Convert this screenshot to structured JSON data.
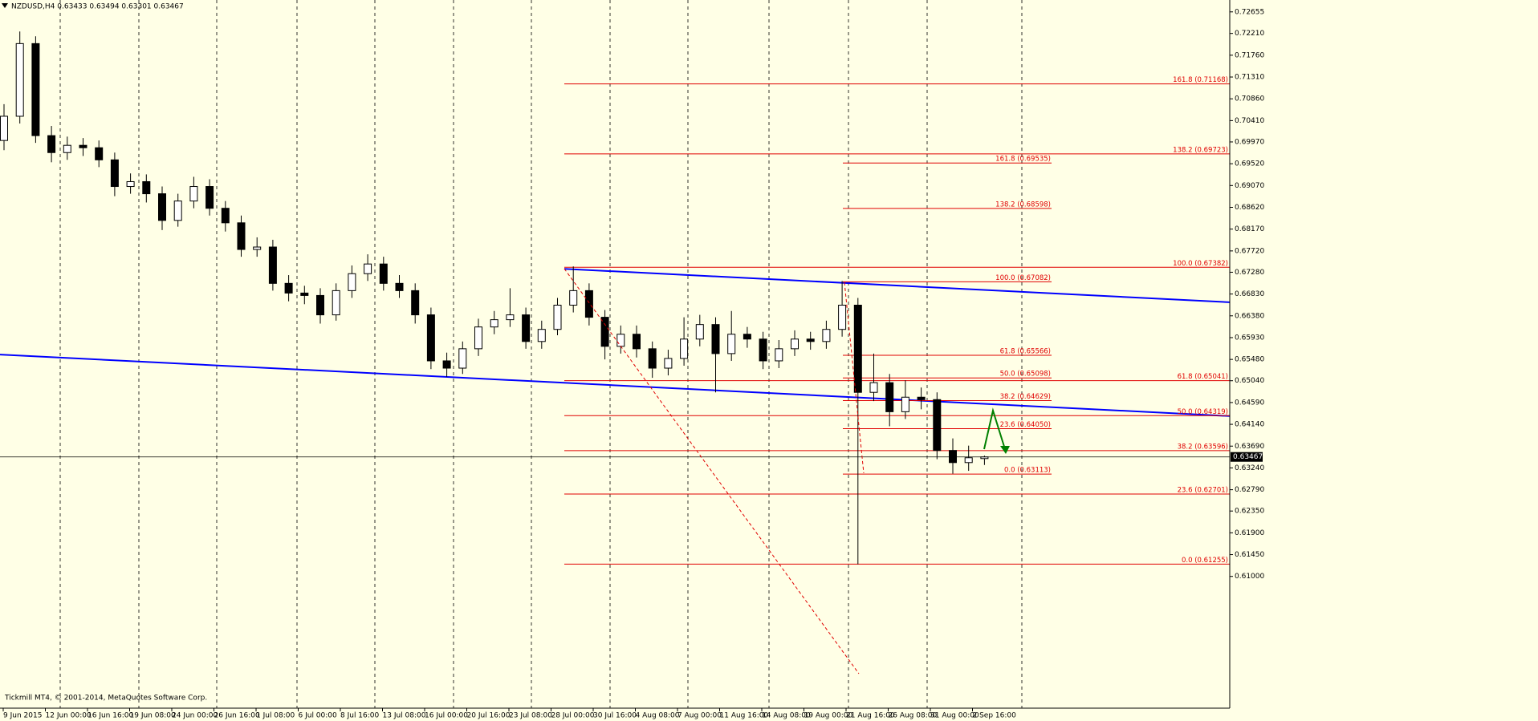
{
  "chart_data": {
    "type": "candlestick",
    "header": "NZDUSD,H4  0.63433 0.63494 0.63301 0.63467",
    "footer": "Tickmill MT4, © 2001-2014, MetaQuotes Software Corp.",
    "background": "#ffffe6",
    "up_color": "#ffffff",
    "down_color": "#000000",
    "ylim": [
      0.5828,
      0.729
    ],
    "yticks": [
      0.72655,
      {
        "value": 0.7221,
        "label": "0.72210"
      },
      {
        "value": 0.7176,
        "label": "0.71760"
      },
      {
        "value": 0.7131,
        "label": "0.71310"
      },
      {
        "value": 0.7086,
        "label": "0.70860"
      },
      {
        "value": 0.7041,
        "label": "0.70410"
      },
      {
        "value": 0.6997,
        "label": "0.69970"
      },
      {
        "value": 0.6952,
        "label": "0.69520"
      },
      {
        "value": 0.6907,
        "label": "0.69070"
      },
      {
        "value": 0.6862,
        "label": "0.68620"
      },
      {
        "value": 0.6817,
        "label": "0.68170"
      },
      {
        "value": 0.6772,
        "label": "0.67720"
      },
      {
        "value": 0.6728,
        "label": "0.67280"
      },
      {
        "value": 0.6683,
        "label": "0.66830"
      },
      {
        "value": 0.6638,
        "label": "0.66380"
      },
      {
        "value": 0.6593,
        "label": "0.65930"
      },
      {
        "value": 0.6548,
        "label": "0.65480"
      },
      {
        "value": 0.6504,
        "label": "0.65040"
      },
      {
        "value": 0.6459,
        "label": "0.64590"
      },
      {
        "value": 0.6414,
        "label": "0.64140"
      },
      {
        "value": 0.6369,
        "label": "0.63690"
      },
      {
        "value": 0.6324,
        "label": "0.63240"
      },
      {
        "value": 0.6279,
        "label": "0.62790"
      },
      {
        "value": 0.6235,
        "label": "0.62350"
      },
      {
        "value": 0.619,
        "label": "0.61900"
      },
      {
        "value": 0.6145,
        "label": "0.61450"
      },
      {
        "value": 0.61,
        "label": "0.61000"
      }
    ],
    "x_tick_labels": [
      "9 Jun 2015",
      "12 Jun 00:00",
      "16 Jun 16:00",
      "19 Jun 08:00",
      "24 Jun 00:00",
      "26 Jun 16:00",
      "1 Jul 08:00",
      "6 Jul 00:00",
      "8 Jul 16:00",
      "13 Jul 08:00",
      "16 Jul 00:00",
      "20 Jul 16:00",
      "23 Jul 08:00",
      "28 Jul 00:00",
      "30 Jul 16:00",
      "4 Aug 08:00",
      "7 Aug 00:00",
      "11 Aug 16:00",
      "14 Aug 08:00",
      "19 Aug 00:00",
      "21 Aug 16:00",
      "26 Aug 08:00",
      "31 Aug 00:00",
      "2 Sep 16:00"
    ],
    "open": [
      0.7,
      0.705,
      0.72,
      0.701,
      0.6975,
      0.699,
      0.6985,
      0.696,
      0.6905,
      0.6915,
      0.689,
      0.6835,
      0.6875,
      0.6905,
      0.686,
      0.683,
      0.6775,
      0.678,
      0.6705,
      0.6685,
      0.668,
      0.664,
      0.669,
      0.6725,
      0.6745,
      0.6705,
      0.669,
      0.664,
      0.6545,
      0.653,
      0.657,
      0.6615,
      0.663,
      0.664,
      0.6585,
      0.661,
      0.666,
      0.669,
      0.6635,
      0.6575,
      0.66,
      0.657,
      0.653,
      0.655,
      0.659,
      0.662,
      0.656,
      0.66,
      0.659,
      0.6545,
      0.657,
      0.659,
      0.6585,
      0.661,
      0.666,
      0.648,
      0.65,
      0.644,
      0.647,
      0.6465,
      0.636,
      0.6335,
      0.63433
    ],
    "high": [
      0.7075,
      0.7225,
      0.7215,
      0.703,
      0.7008,
      0.7005,
      0.7,
      0.6975,
      0.6932,
      0.693,
      0.6905,
      0.689,
      0.6925,
      0.692,
      0.6875,
      0.6845,
      0.68,
      0.6795,
      0.6722,
      0.67,
      0.6695,
      0.6705,
      0.6742,
      0.6765,
      0.676,
      0.6722,
      0.6705,
      0.6655,
      0.6562,
      0.6585,
      0.6632,
      0.6648,
      0.6695,
      0.6655,
      0.6628,
      0.6675,
      0.674,
      0.6705,
      0.665,
      0.6618,
      0.6618,
      0.6585,
      0.6568,
      0.6635,
      0.664,
      0.6635,
      0.6648,
      0.6615,
      0.6605,
      0.6588,
      0.6608,
      0.6605,
      0.6628,
      0.671,
      0.6675,
      0.656,
      0.6518,
      0.6505,
      0.649,
      0.648,
      0.6385,
      0.637,
      0.63494
    ],
    "low": [
      0.698,
      0.7035,
      0.6995,
      0.6955,
      0.696,
      0.6968,
      0.6945,
      0.6885,
      0.689,
      0.6872,
      0.6815,
      0.6822,
      0.686,
      0.6845,
      0.6812,
      0.676,
      0.676,
      0.669,
      0.6668,
      0.6662,
      0.6622,
      0.6628,
      0.6675,
      0.671,
      0.669,
      0.6675,
      0.6622,
      0.6528,
      0.6512,
      0.6518,
      0.6555,
      0.66,
      0.6615,
      0.657,
      0.657,
      0.6598,
      0.6645,
      0.6618,
      0.6548,
      0.656,
      0.6552,
      0.651,
      0.6515,
      0.6535,
      0.6575,
      0.648,
      0.6545,
      0.6572,
      0.6528,
      0.653,
      0.6555,
      0.6568,
      0.657,
      0.6595,
      0.6125,
      0.6462,
      0.641,
      0.6425,
      0.6445,
      0.6342,
      0.6312,
      0.6318,
      0.63301
    ],
    "close": [
      0.705,
      0.72,
      0.701,
      0.6975,
      0.699,
      0.6985,
      0.696,
      0.6905,
      0.6915,
      0.689,
      0.6835,
      0.6875,
      0.6905,
      0.686,
      0.683,
      0.6775,
      0.678,
      0.6705,
      0.6685,
      0.668,
      0.664,
      0.669,
      0.6725,
      0.6745,
      0.6705,
      0.669,
      0.664,
      0.6545,
      0.653,
      0.657,
      0.6615,
      0.663,
      0.664,
      0.6585,
      0.661,
      0.666,
      0.669,
      0.6635,
      0.6575,
      0.66,
      0.657,
      0.653,
      0.655,
      0.659,
      0.662,
      0.656,
      0.66,
      0.659,
      0.6545,
      0.657,
      0.659,
      0.6585,
      0.661,
      0.666,
      0.648,
      0.65,
      0.644,
      0.647,
      0.6465,
      0.636,
      0.6335,
      0.6345,
      0.63467
    ],
    "last_price": 0.63467,
    "trendlines": [
      {
        "color": "#0000ff",
        "values": [
          0.6558,
          0.6431
        ]
      },
      {
        "color": "#0000ff",
        "values": [
          0.6735,
          0.6666
        ]
      }
    ],
    "fibonacci": [
      {
        "color": "#e00000",
        "levels": [
          {
            "label": "161.8 (0.71168)",
            "value": 0.71168
          },
          {
            "label": "138.2 (0.69723)",
            "value": 0.69723
          },
          {
            "label": "100.0 (0.67382)",
            "value": 0.67382
          },
          {
            "label": "61.8 (0.65041)",
            "value": 0.65041
          },
          {
            "label": "50.0 (0.64319)",
            "value": 0.64319
          },
          {
            "label": "38.2 (0.63596)",
            "value": 0.63596
          },
          {
            "label": "23.6 (0.62701)",
            "value": 0.62701
          },
          {
            "label": "0.0 (0.61255)",
            "value": 0.61255
          }
        ]
      },
      {
        "color": "#e00000",
        "levels": [
          {
            "label": "161.8 (0.69535)",
            "value": 0.69535
          },
          {
            "label": "138.2 (0.68598)",
            "value": 0.68598
          },
          {
            "label": "100.0 (0.67082)",
            "value": 0.67082
          },
          {
            "label": "61.8 (0.65566)",
            "value": 0.65566
          },
          {
            "label": "50.0 (0.65098)",
            "value": 0.65098
          },
          {
            "label": "38.2 (0.64629)",
            "value": 0.64629
          },
          {
            "label": "23.6 (0.64050)",
            "value": 0.6405
          },
          {
            "label": "0.0 (0.63113)",
            "value": 0.63113
          }
        ]
      }
    ]
  }
}
